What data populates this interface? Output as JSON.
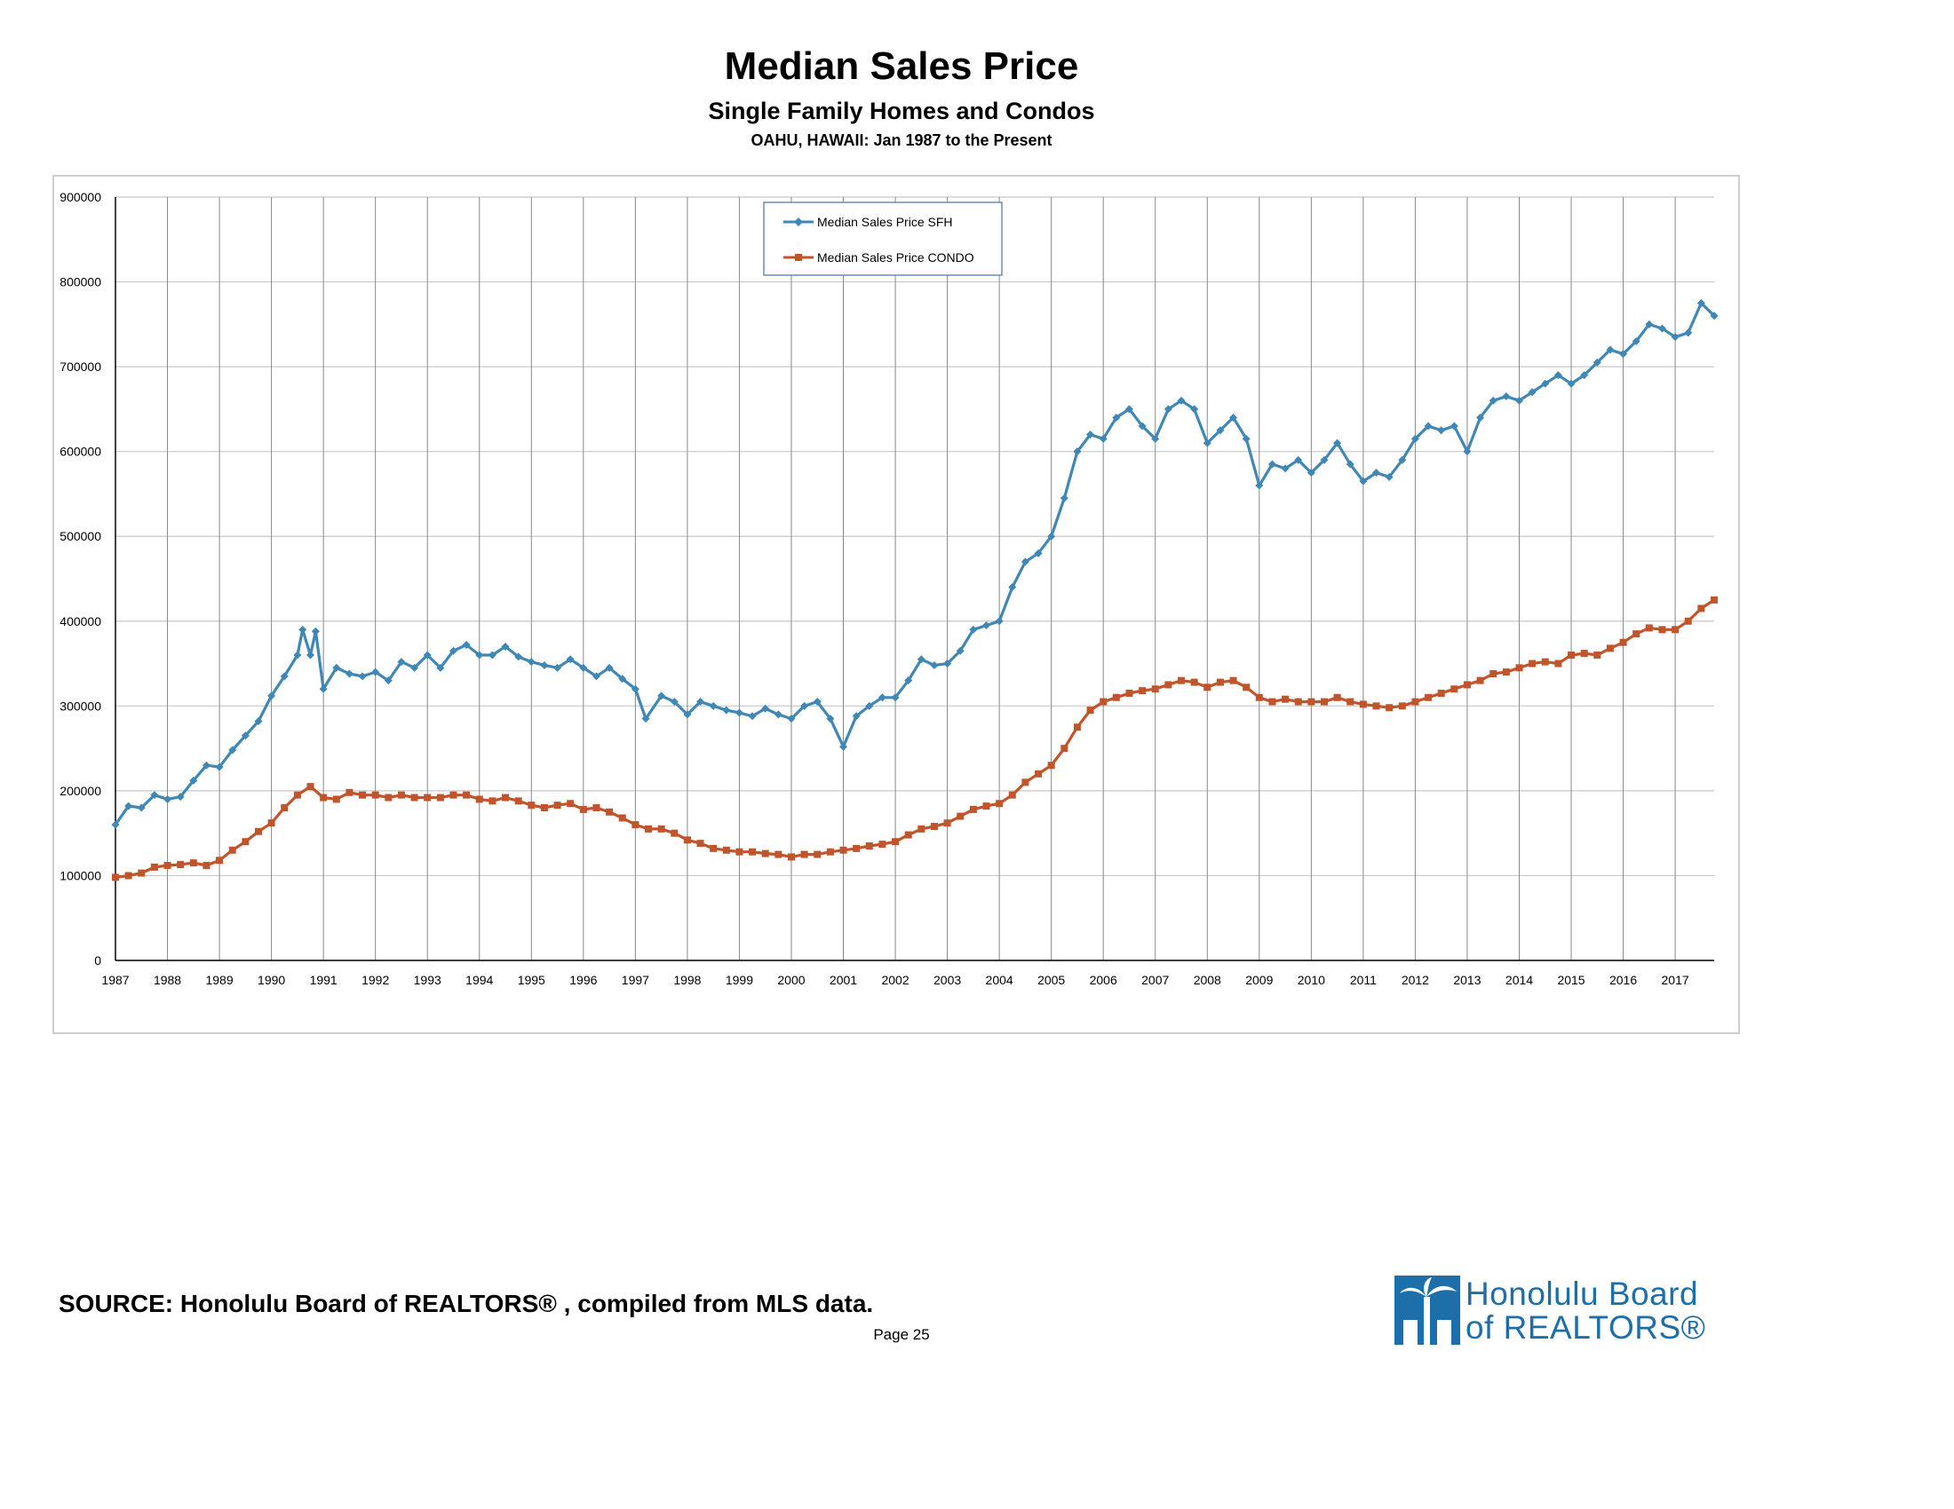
{
  "header": {
    "title": "Median Sales Price",
    "subtitle": "Single Family Homes and Condos",
    "subtitle2": "OAHU, HAWAII: Jan 1987 to the Present"
  },
  "footer": {
    "source": "SOURCE:  Honolulu Board of REALTORS® , compiled from MLS data.",
    "page": "Page 25"
  },
  "logo": {
    "line1": "Honolulu Board",
    "line2": "of REALTORS®"
  },
  "colors": {
    "sfh": "#3f87b5",
    "condo": "#c0552b",
    "grid": "#c8c8c8",
    "year_line": "#888888",
    "logo_blue": "#1c6fa8"
  },
  "chart_data": {
    "type": "line",
    "title": "Median Sales Price",
    "ylim": [
      0,
      900000
    ],
    "yticks": [
      0,
      100000,
      200000,
      300000,
      400000,
      500000,
      600000,
      700000,
      800000,
      900000
    ],
    "xlim": [
      1987,
      2017.75
    ],
    "xticks": [
      "1987",
      "1988",
      "1989",
      "1990",
      "1991",
      "1992",
      "1993",
      "1994",
      "1995",
      "1996",
      "1997",
      "1998",
      "1999",
      "2000",
      "2001",
      "2002",
      "2003",
      "2004",
      "2005",
      "2006",
      "2007",
      "2008",
      "2009",
      "2010",
      "2011",
      "2012",
      "2013",
      "2014",
      "2015",
      "2016",
      "2017"
    ],
    "grid": true,
    "legend": "top-center",
    "x_unit": "year",
    "series": [
      {
        "name": "Median Sales Price SFH",
        "color": "#3f87b5",
        "marker": "diamond",
        "points": [
          [
            1987.0,
            160000
          ],
          [
            1987.25,
            182000
          ],
          [
            1987.5,
            180000
          ],
          [
            1987.75,
            195000
          ],
          [
            1988.0,
            190000
          ],
          [
            1988.25,
            193000
          ],
          [
            1988.5,
            212000
          ],
          [
            1988.75,
            230000
          ],
          [
            1989.0,
            228000
          ],
          [
            1989.25,
            248000
          ],
          [
            1989.5,
            265000
          ],
          [
            1989.75,
            282000
          ],
          [
            1990.0,
            312000
          ],
          [
            1990.25,
            335000
          ],
          [
            1990.5,
            360000
          ],
          [
            1990.6,
            390000
          ],
          [
            1990.75,
            360000
          ],
          [
            1990.85,
            388000
          ],
          [
            1991.0,
            320000
          ],
          [
            1991.25,
            345000
          ],
          [
            1991.5,
            338000
          ],
          [
            1991.75,
            335000
          ],
          [
            1992.0,
            340000
          ],
          [
            1992.25,
            330000
          ],
          [
            1992.5,
            352000
          ],
          [
            1992.75,
            345000
          ],
          [
            1993.0,
            360000
          ],
          [
            1993.25,
            345000
          ],
          [
            1993.5,
            365000
          ],
          [
            1993.75,
            372000
          ],
          [
            1994.0,
            360000
          ],
          [
            1994.25,
            360000
          ],
          [
            1994.5,
            370000
          ],
          [
            1994.75,
            358000
          ],
          [
            1995.0,
            352000
          ],
          [
            1995.25,
            348000
          ],
          [
            1995.5,
            345000
          ],
          [
            1995.75,
            355000
          ],
          [
            1996.0,
            345000
          ],
          [
            1996.25,
            335000
          ],
          [
            1996.5,
            345000
          ],
          [
            1996.75,
            332000
          ],
          [
            1997.0,
            320000
          ],
          [
            1997.2,
            285000
          ],
          [
            1997.5,
            312000
          ],
          [
            1997.75,
            305000
          ],
          [
            1998.0,
            290000
          ],
          [
            1998.25,
            305000
          ],
          [
            1998.5,
            300000
          ],
          [
            1998.75,
            295000
          ],
          [
            1999.0,
            292000
          ],
          [
            1999.25,
            288000
          ],
          [
            1999.5,
            297000
          ],
          [
            1999.75,
            290000
          ],
          [
            2000.0,
            285000
          ],
          [
            2000.25,
            300000
          ],
          [
            2000.5,
            305000
          ],
          [
            2000.75,
            285000
          ],
          [
            2001.0,
            252000
          ],
          [
            2001.25,
            288000
          ],
          [
            2001.5,
            300000
          ],
          [
            2001.75,
            310000
          ],
          [
            2002.0,
            310000
          ],
          [
            2002.25,
            330000
          ],
          [
            2002.5,
            355000
          ],
          [
            2002.75,
            348000
          ],
          [
            2003.0,
            350000
          ],
          [
            2003.25,
            365000
          ],
          [
            2003.5,
            390000
          ],
          [
            2003.75,
            395000
          ],
          [
            2004.0,
            400000
          ],
          [
            2004.25,
            440000
          ],
          [
            2004.5,
            470000
          ],
          [
            2004.75,
            480000
          ],
          [
            2005.0,
            500000
          ],
          [
            2005.25,
            545000
          ],
          [
            2005.5,
            600000
          ],
          [
            2005.75,
            620000
          ],
          [
            2006.0,
            615000
          ],
          [
            2006.25,
            640000
          ],
          [
            2006.5,
            650000
          ],
          [
            2006.75,
            630000
          ],
          [
            2007.0,
            615000
          ],
          [
            2007.25,
            650000
          ],
          [
            2007.5,
            660000
          ],
          [
            2007.75,
            650000
          ],
          [
            2008.0,
            610000
          ],
          [
            2008.25,
            625000
          ],
          [
            2008.5,
            640000
          ],
          [
            2008.75,
            615000
          ],
          [
            2009.0,
            560000
          ],
          [
            2009.25,
            585000
          ],
          [
            2009.5,
            580000
          ],
          [
            2009.75,
            590000
          ],
          [
            2010.0,
            575000
          ],
          [
            2010.25,
            590000
          ],
          [
            2010.5,
            610000
          ],
          [
            2010.75,
            585000
          ],
          [
            2011.0,
            565000
          ],
          [
            2011.25,
            575000
          ],
          [
            2011.5,
            570000
          ],
          [
            2011.75,
            590000
          ],
          [
            2012.0,
            615000
          ],
          [
            2012.25,
            630000
          ],
          [
            2012.5,
            625000
          ],
          [
            2012.75,
            630000
          ],
          [
            2013.0,
            600000
          ],
          [
            2013.25,
            640000
          ],
          [
            2013.5,
            660000
          ],
          [
            2013.75,
            665000
          ],
          [
            2014.0,
            660000
          ],
          [
            2014.25,
            670000
          ],
          [
            2014.5,
            680000
          ],
          [
            2014.75,
            690000
          ],
          [
            2015.0,
            680000
          ],
          [
            2015.25,
            690000
          ],
          [
            2015.5,
            705000
          ],
          [
            2015.75,
            720000
          ],
          [
            2016.0,
            715000
          ],
          [
            2016.25,
            730000
          ],
          [
            2016.5,
            750000
          ],
          [
            2016.75,
            745000
          ],
          [
            2017.0,
            735000
          ],
          [
            2017.25,
            740000
          ],
          [
            2017.5,
            775000
          ],
          [
            2017.75,
            760000
          ]
        ]
      },
      {
        "name": "Median Sales Price CONDO",
        "color": "#c0552b",
        "marker": "square",
        "points": [
          [
            1987.0,
            98000
          ],
          [
            1987.25,
            100000
          ],
          [
            1987.5,
            103000
          ],
          [
            1987.75,
            110000
          ],
          [
            1988.0,
            112000
          ],
          [
            1988.25,
            113000
          ],
          [
            1988.5,
            115000
          ],
          [
            1988.75,
            112000
          ],
          [
            1989.0,
            118000
          ],
          [
            1989.25,
            130000
          ],
          [
            1989.5,
            140000
          ],
          [
            1989.75,
            152000
          ],
          [
            1990.0,
            162000
          ],
          [
            1990.25,
            180000
          ],
          [
            1990.5,
            195000
          ],
          [
            1990.75,
            205000
          ],
          [
            1991.0,
            192000
          ],
          [
            1991.25,
            190000
          ],
          [
            1991.5,
            198000
          ],
          [
            1991.75,
            195000
          ],
          [
            1992.0,
            195000
          ],
          [
            1992.25,
            192000
          ],
          [
            1992.5,
            195000
          ],
          [
            1992.75,
            192000
          ],
          [
            1993.0,
            192000
          ],
          [
            1993.25,
            192000
          ],
          [
            1993.5,
            195000
          ],
          [
            1993.75,
            195000
          ],
          [
            1994.0,
            190000
          ],
          [
            1994.25,
            188000
          ],
          [
            1994.5,
            192000
          ],
          [
            1994.75,
            188000
          ],
          [
            1995.0,
            183000
          ],
          [
            1995.25,
            180000
          ],
          [
            1995.5,
            183000
          ],
          [
            1995.75,
            185000
          ],
          [
            1996.0,
            178000
          ],
          [
            1996.25,
            180000
          ],
          [
            1996.5,
            175000
          ],
          [
            1996.75,
            168000
          ],
          [
            1997.0,
            160000
          ],
          [
            1997.25,
            155000
          ],
          [
            1997.5,
            155000
          ],
          [
            1997.75,
            150000
          ],
          [
            1998.0,
            142000
          ],
          [
            1998.25,
            138000
          ],
          [
            1998.5,
            132000
          ],
          [
            1998.75,
            130000
          ],
          [
            1999.0,
            128000
          ],
          [
            1999.25,
            128000
          ],
          [
            1999.5,
            126000
          ],
          [
            1999.75,
            125000
          ],
          [
            2000.0,
            122000
          ],
          [
            2000.25,
            125000
          ],
          [
            2000.5,
            125000
          ],
          [
            2000.75,
            128000
          ],
          [
            2001.0,
            130000
          ],
          [
            2001.25,
            132000
          ],
          [
            2001.5,
            135000
          ],
          [
            2001.75,
            137000
          ],
          [
            2002.0,
            140000
          ],
          [
            2002.25,
            148000
          ],
          [
            2002.5,
            155000
          ],
          [
            2002.75,
            158000
          ],
          [
            2003.0,
            162000
          ],
          [
            2003.25,
            170000
          ],
          [
            2003.5,
            178000
          ],
          [
            2003.75,
            182000
          ],
          [
            2004.0,
            185000
          ],
          [
            2004.25,
            195000
          ],
          [
            2004.5,
            210000
          ],
          [
            2004.75,
            220000
          ],
          [
            2005.0,
            230000
          ],
          [
            2005.25,
            250000
          ],
          [
            2005.5,
            275000
          ],
          [
            2005.75,
            295000
          ],
          [
            2006.0,
            305000
          ],
          [
            2006.25,
            310000
          ],
          [
            2006.5,
            315000
          ],
          [
            2006.75,
            318000
          ],
          [
            2007.0,
            320000
          ],
          [
            2007.25,
            325000
          ],
          [
            2007.5,
            330000
          ],
          [
            2007.75,
            328000
          ],
          [
            2008.0,
            322000
          ],
          [
            2008.25,
            328000
          ],
          [
            2008.5,
            330000
          ],
          [
            2008.75,
            322000
          ],
          [
            2009.0,
            310000
          ],
          [
            2009.25,
            305000
          ],
          [
            2009.5,
            308000
          ],
          [
            2009.75,
            305000
          ],
          [
            2010.0,
            305000
          ],
          [
            2010.25,
            305000
          ],
          [
            2010.5,
            310000
          ],
          [
            2010.75,
            305000
          ],
          [
            2011.0,
            302000
          ],
          [
            2011.25,
            300000
          ],
          [
            2011.5,
            298000
          ],
          [
            2011.75,
            300000
          ],
          [
            2012.0,
            305000
          ],
          [
            2012.25,
            310000
          ],
          [
            2012.5,
            315000
          ],
          [
            2012.75,
            320000
          ],
          [
            2013.0,
            325000
          ],
          [
            2013.25,
            330000
          ],
          [
            2013.5,
            338000
          ],
          [
            2013.75,
            340000
          ],
          [
            2014.0,
            345000
          ],
          [
            2014.25,
            350000
          ],
          [
            2014.5,
            352000
          ],
          [
            2014.75,
            350000
          ],
          [
            2015.0,
            360000
          ],
          [
            2015.25,
            362000
          ],
          [
            2015.5,
            360000
          ],
          [
            2015.75,
            368000
          ],
          [
            2016.0,
            375000
          ],
          [
            2016.25,
            385000
          ],
          [
            2016.5,
            392000
          ],
          [
            2016.75,
            390000
          ],
          [
            2017.0,
            390000
          ],
          [
            2017.25,
            400000
          ],
          [
            2017.5,
            415000
          ],
          [
            2017.75,
            425000
          ]
        ]
      }
    ]
  }
}
